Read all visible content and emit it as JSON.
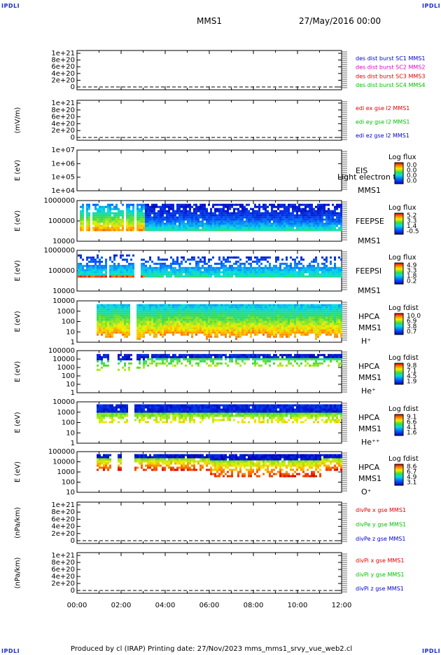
{
  "header": {
    "logo_tl": "IPDLI",
    "logo_tr": "IPDLI",
    "logo_bl": "IPDLI",
    "logo_br": "IPDLI",
    "mission": "MMS1",
    "date": "27/May/2016 00:00"
  },
  "footer": {
    "text": "Produced by cl (IRAP)   Printing date: 27/Nov/2023   mms_mms1_srvy_vue_web2.cl"
  },
  "time_axis": {
    "labels": [
      "00:00",
      "02:00",
      "04:00",
      "06:00",
      "08:00",
      "10:00",
      "12:00"
    ],
    "range_hours": [
      0,
      12
    ]
  },
  "colors": {
    "red": "#e00000",
    "magenta": "#e000c0",
    "green": "#00c000",
    "blue": "#0000d0"
  },
  "chart_data": [
    {
      "type": "line",
      "ylabel": "",
      "yticks": [
        "1e+21",
        "8e+20",
        "6e+20",
        "4e+20",
        "2e+20",
        "0"
      ],
      "legend": [
        {
          "text": "des dist burst SC1 MMS1",
          "color": "#0000d0"
        },
        {
          "text": "des dist burst SC2 MMS2",
          "color": "#e000c0"
        },
        {
          "text": "des dist burst SC3 MMS3",
          "color": "#e00000"
        },
        {
          "text": "des dist burst SC4 MMS4",
          "color": "#00c000"
        }
      ]
    },
    {
      "type": "line",
      "ylabel": "(mV/m)",
      "yticks": [
        "1e+21",
        "8e+20",
        "6e+20",
        "4e+20",
        "2e+20",
        "0"
      ],
      "legend": [
        {
          "text": "edi ex gse l2 MMS1",
          "color": "#e00000"
        },
        {
          "text": "edi ey gse l2 MMS1",
          "color": "#00c000"
        },
        {
          "text": "edi ez gse l2 MMS1",
          "color": "#0000d0"
        }
      ]
    },
    {
      "type": "heatmap",
      "ylabel": "E (eV)",
      "yticks": [
        "1e+07",
        "1e+06",
        "1e+05",
        "1e+04"
      ],
      "labels": [
        "EIS",
        "MMS1"
      ],
      "overlay_text": "Light electron to",
      "colorbar_title": "Log flux",
      "colorbar_values": [
        "0.0",
        "0.0",
        "0.0",
        "0.0"
      ]
    },
    {
      "type": "heatmap",
      "ylabel": "E (eV)",
      "yticks": [
        "1000000",
        "100000",
        "10000"
      ],
      "labels": [
        "FEEPSE",
        "MMS1"
      ],
      "colorbar_title": "Log flux",
      "colorbar_values": [
        "5.2",
        "3.3",
        "1.4",
        "-0.5"
      ]
    },
    {
      "type": "heatmap",
      "ylabel": "E (eV)",
      "yticks": [
        "1000000",
        "100000",
        "10000"
      ],
      "labels": [
        "FEEPSI",
        "MMS1"
      ],
      "colorbar_title": "Log flux",
      "colorbar_values": [
        "4.9",
        "3.3",
        "1.8",
        "0.2"
      ]
    },
    {
      "type": "heatmap",
      "ylabel": "E (eV)",
      "yticks": [
        "10000",
        "1000",
        "100",
        "10",
        "1"
      ],
      "labels": [
        "HPCA",
        "MMS1",
        "H⁺"
      ],
      "colorbar_title": "Log fdist",
      "colorbar_values": [
        "10.0",
        "6.9",
        "3.8",
        "0.7"
      ]
    },
    {
      "type": "heatmap",
      "ylabel": "E (eV)",
      "yticks": [
        "100000",
        "10000",
        "1000",
        "100",
        "10",
        "1"
      ],
      "labels": [
        "HPCA",
        "MMS1",
        "He⁺"
      ],
      "colorbar_title": "Log fdist",
      "colorbar_values": [
        "9.8",
        "7.1",
        "4.5",
        "1.9"
      ]
    },
    {
      "type": "heatmap",
      "ylabel": "E (eV)",
      "yticks": [
        "10000",
        "1000",
        "100",
        "10",
        "1"
      ],
      "labels": [
        "HPCA",
        "MMS1",
        "He⁺⁺"
      ],
      "colorbar_title": "Log fdist",
      "colorbar_values": [
        "9.1",
        "6.6",
        "4.1",
        "1.6"
      ]
    },
    {
      "type": "heatmap",
      "ylabel": "E (eV)",
      "yticks": [
        "100000",
        "10000",
        "1000",
        "100",
        "10"
      ],
      "labels": [
        "HPCA",
        "MMS1",
        "O⁺"
      ],
      "colorbar_title": "Log fdist",
      "colorbar_values": [
        "8.6",
        "6.7",
        "4.9",
        "3.1"
      ]
    },
    {
      "type": "line",
      "ylabel": "(nPa/km)",
      "yticks": [
        "1e+21",
        "8e+20",
        "6e+20",
        "4e+20",
        "2e+20",
        "0"
      ],
      "legend": [
        {
          "text": "divPe x gse MMS1",
          "color": "#e00000"
        },
        {
          "text": "divPe y gse MMS1",
          "color": "#00c000"
        },
        {
          "text": "divPe z gse MMS1",
          "color": "#0000d0"
        }
      ]
    },
    {
      "type": "line",
      "ylabel": "(nPa/km)",
      "yticks": [
        "1e+21",
        "8e+20",
        "6e+20",
        "4e+20",
        "2e+20",
        "0"
      ],
      "legend": [
        {
          "text": "divPi x gse MMS1",
          "color": "#e00000"
        },
        {
          "text": "divPi y gse MMS1",
          "color": "#00c000"
        },
        {
          "text": "divPi z gse MMS1",
          "color": "#0000d0"
        }
      ]
    }
  ]
}
